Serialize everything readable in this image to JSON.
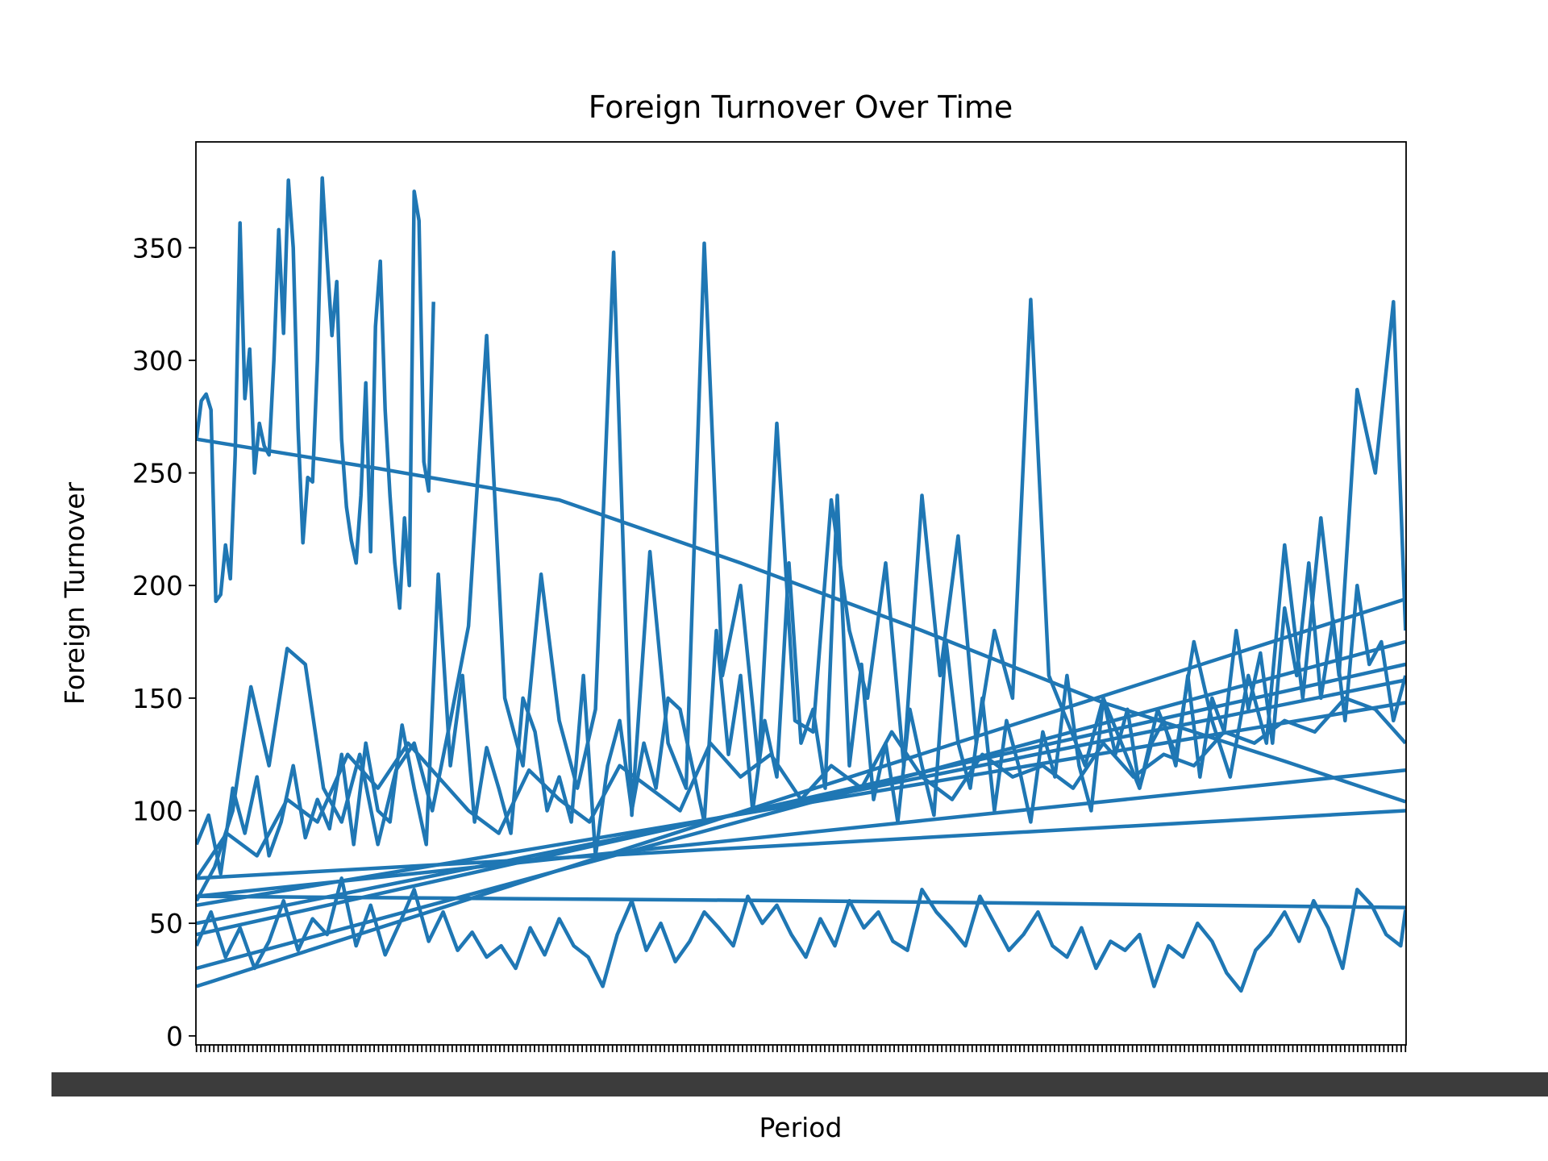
{
  "chart_data": {
    "type": "line",
    "title": "Foreign Turnover Over Time",
    "xlabel": "Period",
    "ylabel": "Foreign Turnover",
    "ylim": [
      -4,
      397
    ],
    "xlim": [
      -0.5,
      1000.5
    ],
    "y_ticks": [
      0,
      50,
      100,
      150,
      200,
      250,
      300,
      350
    ],
    "grid": false,
    "legend": "none",
    "color": "#1f77b4",
    "note_x": "x values are period order indices (0 = first period, 1000 = last); the period tick labels are overprinted and illegible",
    "series": [
      {
        "x": [
          0,
          4,
          8,
          12,
          16,
          20,
          24,
          28,
          32,
          36,
          40,
          44,
          48,
          52,
          56,
          60,
          64,
          68,
          72,
          76,
          80,
          84,
          88,
          92,
          96,
          100,
          104,
          108,
          112,
          116,
          120,
          124,
          128,
          132,
          136,
          140,
          144,
          148,
          152,
          156,
          160,
          164,
          168,
          172,
          176,
          180,
          184,
          188,
          192,
          196
        ],
        "values": [
          265,
          282,
          285,
          278,
          193,
          196,
          218,
          203,
          258,
          361,
          283,
          305,
          250,
          272,
          262,
          258,
          300,
          358,
          312,
          380,
          350,
          270,
          219,
          248,
          246,
          300,
          381,
          345,
          311,
          335,
          265,
          235,
          220,
          210,
          240,
          290,
          215,
          315,
          344,
          278,
          240,
          210,
          190,
          230,
          200,
          375,
          362,
          255,
          242,
          326
        ]
      },
      {
        "x": [
          0,
          150,
          300,
          450,
          600,
          750,
          900,
          1000
        ],
        "values": [
          265,
          252,
          238,
          210,
          180,
          148,
          122,
          104
        ]
      },
      {
        "x": [
          0,
          10,
          20,
          30,
          40,
          50,
          60,
          70,
          80,
          90,
          100,
          110,
          120,
          130,
          140,
          150,
          160,
          170,
          180,
          190,
          200,
          210,
          220,
          230,
          240,
          250,
          260,
          270,
          280,
          290,
          300,
          310,
          320,
          330,
          340,
          350,
          360,
          370,
          380,
          390,
          400,
          410,
          420,
          430,
          440,
          450,
          460,
          470,
          480,
          490,
          500,
          510,
          520,
          530,
          540,
          550,
          560,
          570,
          580,
          590,
          600,
          610,
          620,
          630,
          640,
          650,
          660,
          670,
          680,
          690,
          700,
          710,
          720,
          730,
          740,
          750,
          760,
          770,
          780,
          790,
          800,
          810,
          820,
          830,
          840,
          850,
          860,
          870,
          880,
          890,
          900,
          910,
          920,
          930,
          940,
          950,
          960,
          970,
          980,
          990,
          1000
        ],
        "values": [
          85,
          98,
          72,
          110,
          90,
          115,
          80,
          95,
          120,
          88,
          105,
          92,
          125,
          85,
          130,
          100,
          95,
          138,
          110,
          85,
          205,
          120,
          160,
          95,
          128,
          110,
          90,
          150,
          135,
          100,
          115,
          95,
          160,
          80,
          120,
          140,
          100,
          130,
          110,
          150,
          145,
          120,
          95,
          180,
          125,
          160,
          100,
          140,
          115,
          210,
          130,
          145,
          110,
          240,
          120,
          165,
          105,
          130,
          95,
          145,
          120,
          98,
          175,
          130,
          110,
          150,
          100,
          140,
          120,
          95,
          135,
          115,
          160,
          120,
          100,
          150,
          125,
          145,
          110,
          130,
          140,
          120,
          160,
          115,
          150,
          135,
          180,
          145,
          170,
          130,
          190,
          160,
          210,
          150,
          185,
          140,
          200,
          165,
          175,
          140,
          160
        ]
      },
      {
        "x": [
          0,
          15,
          30,
          45,
          60,
          75,
          90,
          105,
          120,
          135,
          150,
          165,
          180,
          195,
          210,
          225,
          240,
          255,
          270,
          285,
          300,
          315,
          330,
          345,
          360,
          375,
          390,
          405,
          420,
          435,
          450,
          465,
          480,
          495,
          510,
          525,
          540,
          555,
          570,
          585,
          600,
          615,
          630,
          645,
          660,
          675,
          690,
          705,
          720,
          735,
          750,
          765,
          780,
          795,
          810,
          825,
          840,
          855,
          870,
          885,
          900,
          915,
          930,
          945,
          960,
          975,
          990,
          1000
        ],
        "values": [
          60,
          75,
          100,
          155,
          120,
          172,
          165,
          110,
          95,
          125,
          85,
          118,
          130,
          100,
          140,
          182,
          311,
          150,
          120,
          205,
          140,
          110,
          145,
          348,
          98,
          215,
          130,
          110,
          352,
          160,
          200,
          120,
          272,
          140,
          135,
          238,
          180,
          150,
          210,
          120,
          240,
          160,
          222,
          130,
          180,
          150,
          327,
          160,
          140,
          120,
          150,
          130,
          110,
          145,
          125,
          175,
          140,
          115,
          160,
          130,
          218,
          150,
          230,
          160,
          287,
          250,
          326,
          180
        ]
      },
      {
        "x": [
          0,
          12,
          24,
          36,
          48,
          60,
          72,
          84,
          96,
          108,
          120,
          132,
          144,
          156,
          168,
          180,
          192,
          204,
          216,
          228,
          240,
          252,
          264,
          276,
          288,
          300,
          312,
          324,
          336,
          348,
          360,
          372,
          384,
          396,
          408,
          420,
          432,
          444,
          456,
          468,
          480,
          492,
          504,
          516,
          528,
          540,
          552,
          564,
          576,
          588,
          600,
          612,
          624,
          636,
          648,
          660,
          672,
          684,
          696,
          708,
          720,
          732,
          744,
          756,
          768,
          780,
          792,
          804,
          816,
          828,
          840,
          852,
          864,
          876,
          888,
          900,
          912,
          924,
          936,
          948,
          960,
          972,
          984,
          996,
          1000
        ],
        "values": [
          40,
          55,
          35,
          48,
          30,
          42,
          60,
          38,
          52,
          45,
          70,
          40,
          58,
          36,
          50,
          65,
          42,
          55,
          38,
          46,
          35,
          40,
          30,
          48,
          36,
          52,
          40,
          35,
          22,
          45,
          60,
          38,
          50,
          33,
          42,
          55,
          48,
          40,
          62,
          50,
          58,
          45,
          35,
          52,
          40,
          60,
          48,
          55,
          42,
          38,
          65,
          55,
          48,
          40,
          62,
          50,
          38,
          45,
          55,
          40,
          35,
          48,
          30,
          42,
          38,
          45,
          22,
          40,
          35,
          50,
          42,
          28,
          20,
          38,
          45,
          55,
          42,
          60,
          48,
          30,
          65,
          58,
          45,
          40,
          56
        ]
      },
      {
        "x": [
          0,
          25,
          50,
          75,
          100,
          125,
          150,
          175,
          200,
          225,
          250,
          275,
          300,
          325,
          350,
          375,
          400,
          425,
          450,
          475,
          500,
          525,
          550,
          575,
          600,
          625,
          650,
          675,
          700,
          725,
          750,
          775,
          800,
          825,
          850,
          875,
          900,
          925,
          950,
          975,
          1000
        ],
        "values": [
          70,
          90,
          80,
          105,
          95,
          125,
          110,
          130,
          115,
          100,
          90,
          118,
          105,
          95,
          120,
          110,
          100,
          130,
          115,
          125,
          105,
          120,
          110,
          135,
          115,
          105,
          125,
          115,
          120,
          110,
          130,
          115,
          125,
          120,
          135,
          130,
          140,
          135,
          150,
          145,
          130
        ]
      },
      {
        "x": [
          0,
          1000
        ],
        "values": [
          22,
          194
        ]
      },
      {
        "x": [
          0,
          1000
        ],
        "values": [
          30,
          175
        ]
      },
      {
        "x": [
          0,
          1000
        ],
        "values": [
          45,
          165
        ]
      },
      {
        "x": [
          0,
          1000
        ],
        "values": [
          50,
          158
        ]
      },
      {
        "x": [
          0,
          1000
        ],
        "values": [
          58,
          148
        ]
      },
      {
        "x": [
          0,
          1000
        ],
        "values": [
          62,
          118
        ]
      },
      {
        "x": [
          0,
          1000
        ],
        "values": [
          70,
          100
        ]
      },
      {
        "x": [
          0,
          500,
          1000
        ],
        "values": [
          62,
          60,
          57
        ]
      }
    ]
  }
}
